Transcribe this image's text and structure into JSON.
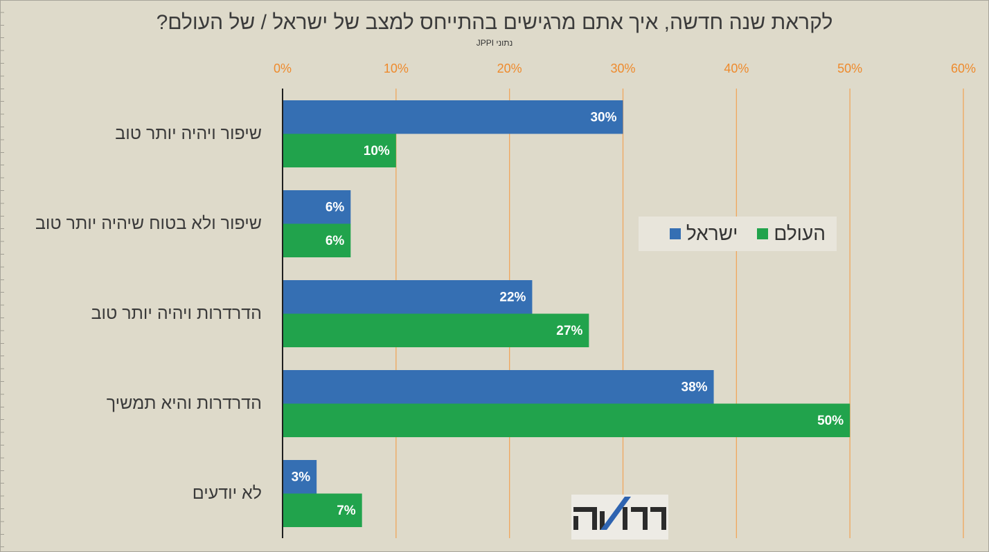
{
  "colors": {
    "background": "#DEDACA",
    "text": "#3A3A3A",
    "tick_labels": "#EE8A2C",
    "gridlines": "#F0A65C",
    "axis": "#1E1E1E",
    "legend_background": "#E8E5DB",
    "logo_background": "#EDEBE5",
    "logo_text": "#2B2B2B",
    "logo_accent": "#2E63B0"
  },
  "logo": {
    "text": "המדד"
  },
  "chart_data": {
    "type": "bar",
    "orientation": "horizontal",
    "title": "לקראת שנה חדשה, איך אתם מרגישים בהתייחס למצב של ישראל / של העולם?",
    "subtitle": "נתוני JPPI",
    "categories": [
      "שיפור ויהיה יותר טוב",
      "שיפור ולא בטוח שיהיה יותר טוב",
      "הדרדרות ויהיה יותר טוב",
      "הדרדרות והיא תמשיך",
      "לא יודעים"
    ],
    "series": [
      {
        "name": "ישראל",
        "color": "#356FB3",
        "values": [
          30,
          6,
          22,
          38,
          3
        ]
      },
      {
        "name": "העולם",
        "color": "#21A34C",
        "values": [
          10,
          6,
          27,
          50,
          7
        ]
      }
    ],
    "value_suffix": "%",
    "xlim": [
      0,
      60
    ],
    "x_ticks": [
      "0%",
      "10%",
      "20%",
      "30%",
      "40%",
      "50%",
      "60%"
    ],
    "x_axis_position": "top",
    "grid": true,
    "data_labels": true,
    "legend_position": "right"
  }
}
